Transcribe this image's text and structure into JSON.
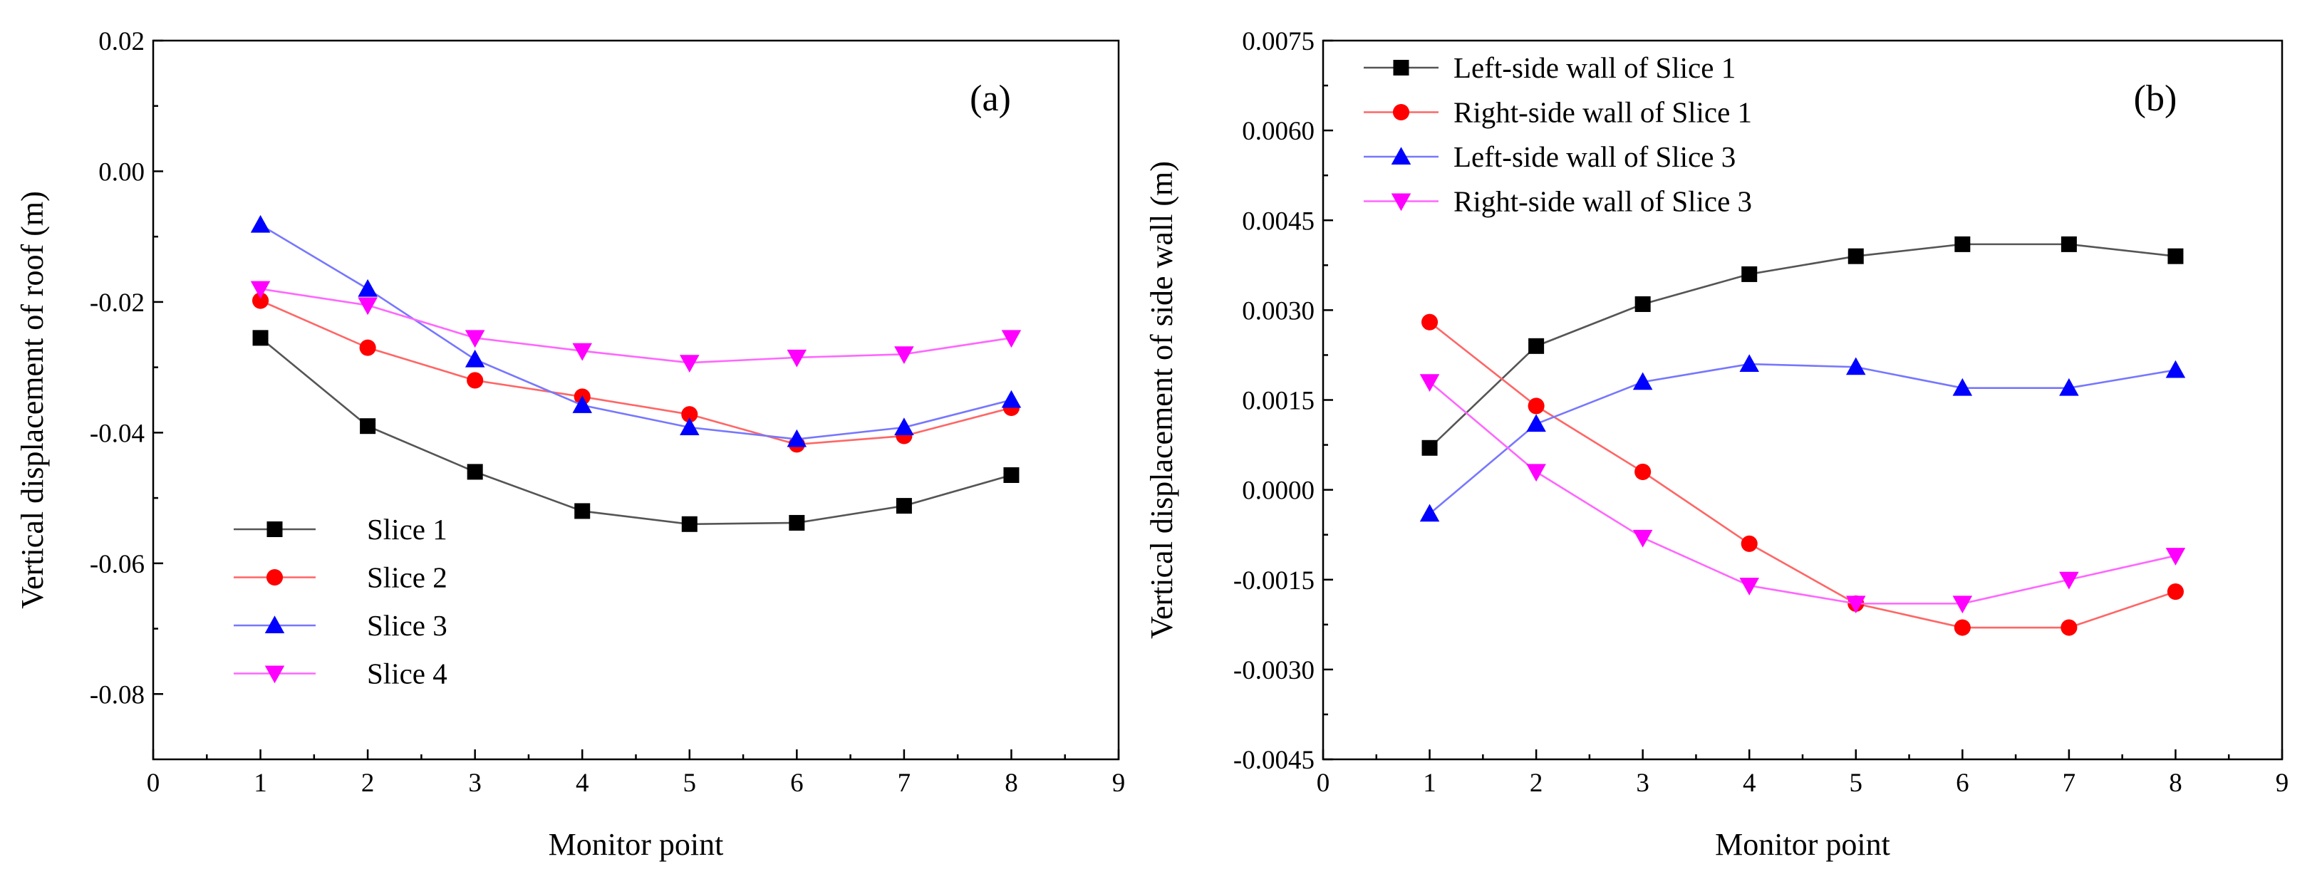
{
  "chart_data": [
    {
      "type": "line",
      "panel_label": "(a)",
      "xlabel": "Monitor point",
      "ylabel": "Vertical displacement of roof (m)",
      "xlim": [
        0,
        9
      ],
      "ylim": [
        -0.09,
        0.02
      ],
      "xticks": [
        0,
        1,
        2,
        3,
        4,
        5,
        6,
        7,
        8,
        9
      ],
      "yticks": [
        -0.08,
        -0.06,
        -0.04,
        -0.02,
        0.0,
        0.02
      ],
      "ytick_labels": [
        "-0.08",
        "-0.06",
        "-0.04",
        "-0.02",
        "0.00",
        "0.02"
      ],
      "legend_position": "lower-left",
      "x": [
        1,
        2,
        3,
        4,
        5,
        6,
        7,
        8
      ],
      "series": [
        {
          "name": "Slice 1",
          "color": "#000000",
          "line_color": "#555555",
          "marker": "square",
          "values": [
            -0.0255,
            -0.039,
            -0.046,
            -0.052,
            -0.054,
            -0.0538,
            -0.0512,
            -0.0465
          ]
        },
        {
          "name": "Slice 2",
          "color": "#ff0000",
          "line_color": "#ff6666",
          "marker": "circle",
          "values": [
            -0.0198,
            -0.027,
            -0.032,
            -0.0345,
            -0.0372,
            -0.0418,
            -0.0405,
            -0.0362
          ]
        },
        {
          "name": "Slice 3",
          "color": "#0000ff",
          "line_color": "#7777ff",
          "marker": "triangle-up",
          "values": [
            -0.0082,
            -0.018,
            -0.0288,
            -0.0358,
            -0.0392,
            -0.041,
            -0.0392,
            -0.035
          ]
        },
        {
          "name": "Slice 4",
          "color": "#ff00ff",
          "line_color": "#ff66ff",
          "marker": "triangle-down",
          "values": [
            -0.018,
            -0.0205,
            -0.0255,
            -0.0275,
            -0.0293,
            -0.0285,
            -0.028,
            -0.0255
          ]
        }
      ]
    },
    {
      "type": "line",
      "panel_label": "(b)",
      "xlabel": "Monitor point",
      "ylabel": "Vertical displacement of side wall (m)",
      "xlim": [
        0,
        9
      ],
      "ylim": [
        -0.0045,
        0.0075
      ],
      "xticks": [
        0,
        1,
        2,
        3,
        4,
        5,
        6,
        7,
        8,
        9
      ],
      "yticks": [
        -0.0045,
        -0.003,
        -0.0015,
        0.0,
        0.0015,
        0.003,
        0.0045,
        0.006,
        0.0075
      ],
      "ytick_labels": [
        "-0.0045",
        "-0.0030",
        "-0.0015",
        "0.0000",
        "0.0015",
        "0.0030",
        "0.0045",
        "0.0060",
        "0.0075"
      ],
      "legend_position": "top-left",
      "x": [
        1,
        2,
        3,
        4,
        5,
        6,
        7,
        8
      ],
      "series": [
        {
          "name": "Left-side wall of Slice 1",
          "color": "#000000",
          "line_color": "#555555",
          "marker": "square",
          "values": [
            0.0007,
            0.0024,
            0.0031,
            0.0036,
            0.0039,
            0.0041,
            0.0041,
            0.0039
          ]
        },
        {
          "name": "Right-side wall of Slice 1",
          "color": "#ff0000",
          "line_color": "#ff6666",
          "marker": "circle",
          "values": [
            0.0028,
            0.0014,
            0.0003,
            -0.0009,
            -0.0019,
            -0.0023,
            -0.0023,
            -0.0017
          ]
        },
        {
          "name": "Left-side wall of Slice 3",
          "color": "#0000ff",
          "line_color": "#7777ff",
          "marker": "triangle-up",
          "values": [
            -0.0004,
            0.0011,
            0.0018,
            0.0021,
            0.00205,
            0.0017,
            0.0017,
            0.002
          ]
        },
        {
          "name": "Right-side wall of Slice 3",
          "color": "#ff00ff",
          "line_color": "#ff66ff",
          "marker": "triangle-down",
          "values": [
            0.0018,
            0.0003,
            -0.0008,
            -0.0016,
            -0.0019,
            -0.0019,
            -0.0015,
            -0.0011
          ]
        }
      ]
    }
  ]
}
